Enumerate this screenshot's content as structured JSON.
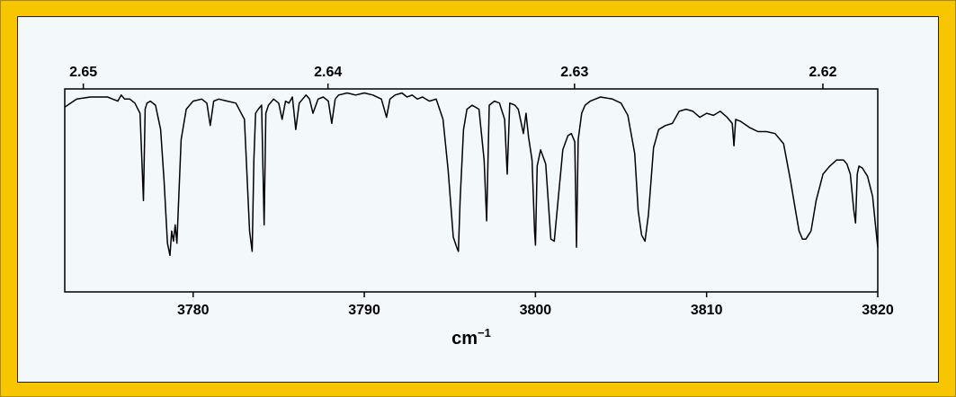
{
  "chart_data": {
    "type": "line",
    "title": "",
    "xlabel": "cm",
    "xlabel_superscript": "−1",
    "ylabel": "",
    "xlim": [
      3772.5,
      3820
    ],
    "ylim": [
      0,
      1
    ],
    "grid": false,
    "legend": "none",
    "x_ticks": [
      3780,
      3790,
      3800,
      3810,
      3820
    ],
    "x_tick_labels": [
      "3780",
      "3790",
      "3800",
      "3810",
      "3820"
    ],
    "top_axis": {
      "label": "",
      "ticks": [
        2.65,
        2.64,
        2.63,
        2.62
      ],
      "tick_labels": [
        "2.65",
        "2.64",
        "2.63",
        "2.62"
      ]
    },
    "series": [
      {
        "x": [
          3772.5,
          3773.2,
          3774.0,
          3775.0,
          3775.6,
          3775.8,
          3776.0,
          3776.3,
          3776.6,
          3776.9,
          3777.1,
          3777.2,
          3777.3,
          3777.5,
          3777.8,
          3778.1,
          3778.3,
          3778.5,
          3778.65,
          3778.75,
          3778.85,
          3778.95,
          3779.05,
          3779.3,
          3779.6,
          3780.0,
          3780.5,
          3780.8,
          3781.0,
          3781.2,
          3781.5,
          3782.0,
          3782.5,
          3783.0,
          3783.3,
          3783.45,
          3783.55,
          3783.65,
          3783.8,
          3784.0,
          3784.15,
          3784.25,
          3784.4,
          3784.7,
          3785.0,
          3785.2,
          3785.4,
          3785.6,
          3785.8,
          3786.0,
          3786.2,
          3786.4,
          3786.6,
          3786.8,
          3787.0,
          3787.3,
          3787.6,
          3787.9,
          3788.1,
          3788.3,
          3788.5,
          3789.0,
          3789.5,
          3790.0,
          3790.5,
          3791.0,
          3791.3,
          3791.5,
          3791.8,
          3792.2,
          3792.5,
          3792.8,
          3793.1,
          3793.4,
          3793.8,
          3794.2,
          3794.6,
          3794.9,
          3795.2,
          3795.4,
          3795.5,
          3795.6,
          3795.8,
          3796.0,
          3796.3,
          3796.7,
          3797.0,
          3797.15,
          3797.3,
          3797.6,
          3797.9,
          3798.2,
          3798.35,
          3798.5,
          3798.8,
          3799.0,
          3799.2,
          3799.3,
          3799.45,
          3799.6,
          3799.8,
          3799.95,
          3800.0,
          3800.1,
          3800.3,
          3800.6,
          3800.9,
          3801.1,
          3801.3,
          3801.6,
          3801.9,
          3802.1,
          3802.3,
          3802.4,
          3802.5,
          3802.7,
          3802.9,
          3803.2,
          3803.8,
          3804.5,
          3805.0,
          3805.4,
          3805.8,
          3806.0,
          3806.2,
          3806.4,
          3806.6,
          3806.9,
          3807.2,
          3807.6,
          3808.0,
          3808.4,
          3808.8,
          3809.2,
          3809.6,
          3810.0,
          3810.4,
          3810.8,
          3811.2,
          3811.5,
          3811.6,
          3811.7,
          3812.0,
          3812.5,
          3813.0,
          3813.5,
          3814.0,
          3814.5,
          3814.9,
          3815.2,
          3815.4,
          3815.6,
          3815.8,
          3816.1,
          3816.4,
          3816.8,
          3817.2,
          3817.6,
          3818.0,
          3818.2,
          3818.4,
          3818.6,
          3818.7,
          3818.8,
          3818.9,
          3819.1,
          3819.4,
          3819.7,
          3819.9,
          3820.0
        ],
        "y": [
          0.91,
          0.95,
          0.96,
          0.96,
          0.94,
          0.97,
          0.95,
          0.95,
          0.93,
          0.88,
          0.45,
          0.9,
          0.93,
          0.94,
          0.92,
          0.8,
          0.55,
          0.24,
          0.18,
          0.3,
          0.25,
          0.33,
          0.24,
          0.75,
          0.9,
          0.94,
          0.95,
          0.93,
          0.82,
          0.94,
          0.95,
          0.94,
          0.93,
          0.85,
          0.3,
          0.2,
          0.65,
          0.88,
          0.9,
          0.92,
          0.33,
          0.88,
          0.92,
          0.95,
          0.93,
          0.85,
          0.94,
          0.93,
          0.96,
          0.8,
          0.93,
          0.95,
          0.97,
          0.95,
          0.88,
          0.95,
          0.96,
          0.94,
          0.83,
          0.95,
          0.97,
          0.98,
          0.97,
          0.98,
          0.97,
          0.95,
          0.86,
          0.95,
          0.97,
          0.98,
          0.96,
          0.97,
          0.95,
          0.96,
          0.94,
          0.95,
          0.85,
          0.6,
          0.27,
          0.22,
          0.2,
          0.45,
          0.8,
          0.9,
          0.92,
          0.9,
          0.65,
          0.35,
          0.92,
          0.94,
          0.93,
          0.85,
          0.58,
          0.93,
          0.92,
          0.9,
          0.82,
          0.78,
          0.88,
          0.76,
          0.65,
          0.3,
          0.23,
          0.62,
          0.7,
          0.63,
          0.26,
          0.25,
          0.43,
          0.7,
          0.77,
          0.78,
          0.74,
          0.22,
          0.75,
          0.88,
          0.92,
          0.94,
          0.96,
          0.95,
          0.93,
          0.87,
          0.68,
          0.4,
          0.28,
          0.25,
          0.38,
          0.71,
          0.8,
          0.82,
          0.83,
          0.89,
          0.9,
          0.89,
          0.86,
          0.88,
          0.87,
          0.89,
          0.86,
          0.83,
          0.72,
          0.85,
          0.84,
          0.81,
          0.79,
          0.79,
          0.78,
          0.73,
          0.55,
          0.4,
          0.3,
          0.26,
          0.26,
          0.3,
          0.45,
          0.58,
          0.62,
          0.65,
          0.65,
          0.63,
          0.58,
          0.4,
          0.34,
          0.58,
          0.62,
          0.61,
          0.57,
          0.47,
          0.3,
          0.22
        ]
      }
    ]
  }
}
